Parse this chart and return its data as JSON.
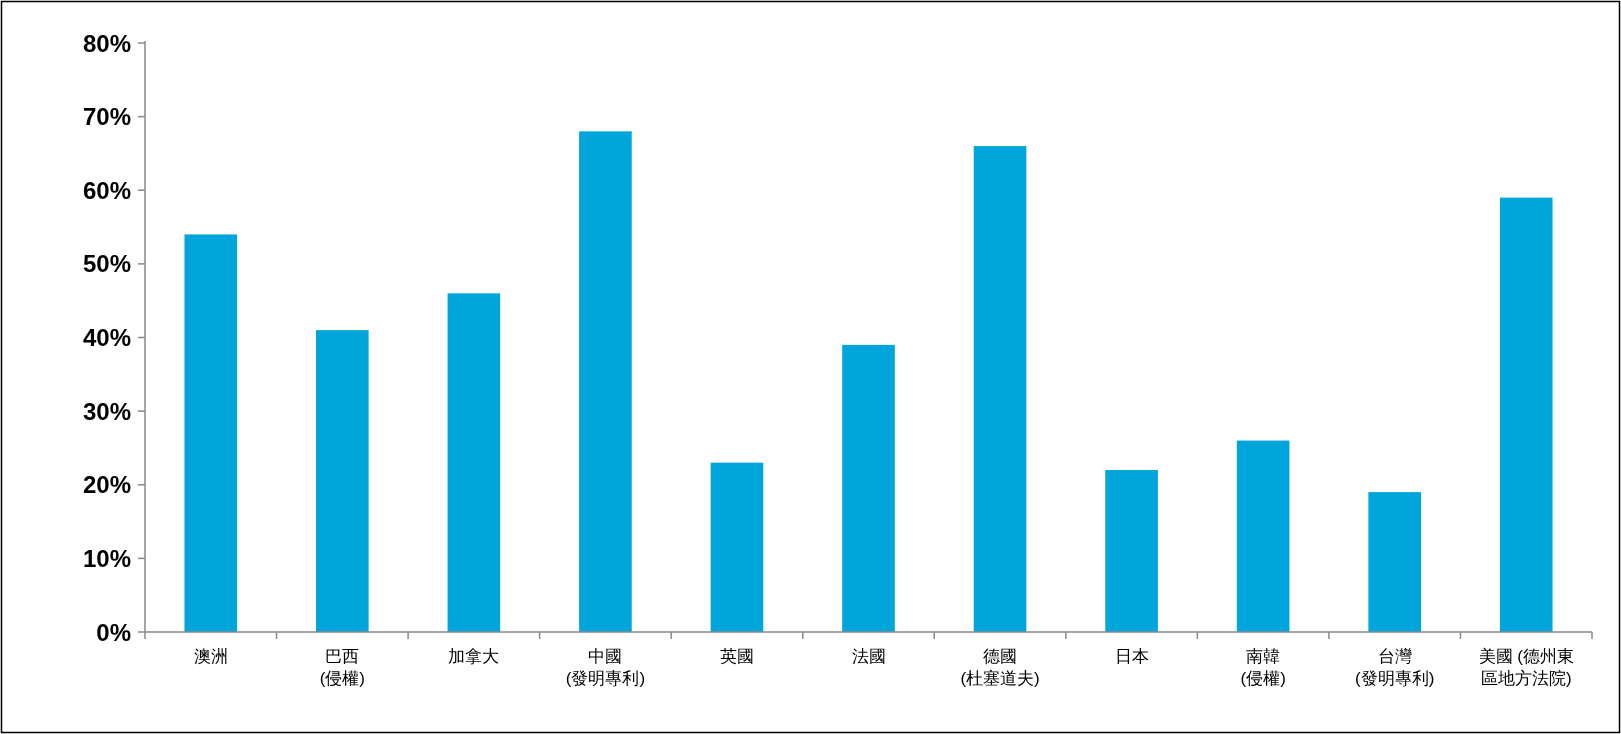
{
  "chart_data": {
    "type": "bar",
    "categories": [
      "澳洲",
      "巴西(侵權)",
      "加拿大",
      "中國(發明專利)",
      "英國",
      "法國",
      "德國(杜塞道夫)",
      "日本",
      "南韓(侵權)",
      "台灣(發明專利)",
      "美國 (德州東區地方法院)"
    ],
    "values": [
      54,
      41,
      46,
      68,
      23,
      39,
      66,
      22,
      26,
      19,
      59
    ],
    "color": "#00a6db",
    "ylim": [
      0,
      80
    ],
    "yticks": [
      {
        "value": 0,
        "label": "0%"
      },
      {
        "value": 10,
        "label": "10%"
      },
      {
        "value": 20,
        "label": "20%"
      },
      {
        "value": 30,
        "label": "30%"
      },
      {
        "value": 40,
        "label": "40%"
      },
      {
        "value": 50,
        "label": "50%"
      },
      {
        "value": 60,
        "label": "60%"
      },
      {
        "value": 70,
        "label": "70%"
      },
      {
        "value": 80,
        "label": "80%"
      }
    ]
  }
}
